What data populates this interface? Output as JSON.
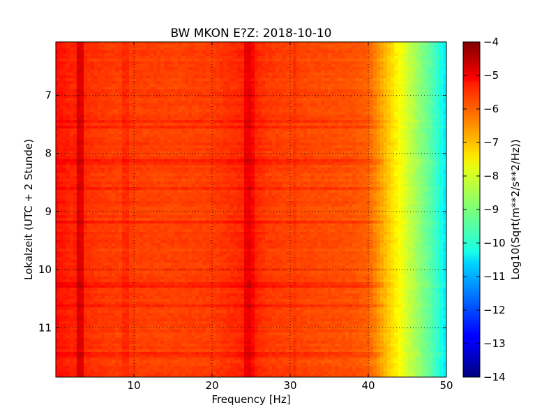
{
  "chart_data": {
    "type": "heatmap",
    "title": "BW MKON E?Z: 2018-10-10",
    "xlabel": "Frequency [Hz]",
    "ylabel": "Lokalzeit (UTC + 2 Stunde)",
    "xlim": [
      0,
      50
    ],
    "ylim": [
      11.85,
      6.08
    ],
    "y_inverted": true,
    "x_ticks": [
      10,
      20,
      30,
      40,
      50
    ],
    "x_tick_labels": [
      "10",
      "20",
      "30",
      "40",
      "50"
    ],
    "y_ticks": [
      7,
      8,
      9,
      10,
      11
    ],
    "y_tick_labels": [
      "7",
      "8",
      "9",
      "10",
      "11"
    ],
    "grid": true,
    "colorbar": {
      "label": "Log10(Sqrt(m**2/s**2/Hz))",
      "range": [
        -14,
        -4
      ],
      "ticks": [
        -4,
        -5,
        -6,
        -7,
        -8,
        -9,
        -10,
        -11,
        -12,
        -13,
        -14
      ],
      "tick_labels": [
        "−4",
        "−5",
        "−6",
        "−7",
        "−8",
        "−9",
        "−10",
        "−11",
        "−12",
        "−13",
        "−14"
      ],
      "colormap": "jet"
    },
    "spectral_profile": {
      "frequency_hz": [
        0,
        1,
        2,
        3,
        4,
        6,
        8,
        10,
        15,
        20,
        24,
        25,
        27,
        30,
        35,
        38,
        40,
        41,
        42,
        43,
        44,
        45,
        46,
        47,
        48,
        49,
        50
      ],
      "log10_amplitude": [
        -5.4,
        -5.5,
        -5.6,
        -5.5,
        -5.7,
        -5.8,
        -5.85,
        -5.85,
        -5.9,
        -5.85,
        -5.6,
        -5.5,
        -5.8,
        -5.9,
        -6.0,
        -6.05,
        -6.2,
        -6.6,
        -7.0,
        -7.4,
        -7.8,
        -8.2,
        -8.6,
        -9.0,
        -9.4,
        -9.8,
        -10.5
      ]
    },
    "time_bands": [
      {
        "time_h": 7.45,
        "offset": 0.25
      },
      {
        "time_h": 7.55,
        "offset": 0.2
      },
      {
        "time_h": 8.15,
        "offset": 0.25
      },
      {
        "time_h": 8.6,
        "offset": 0.2
      },
      {
        "time_h": 9.18,
        "offset": 0.35
      },
      {
        "time_h": 10.28,
        "offset": 0.35
      },
      {
        "time_h": 10.62,
        "offset": 0.2
      },
      {
        "time_h": 11.45,
        "offset": 0.2
      }
    ],
    "freq_bands": [
      {
        "frequency_hz": 3.2,
        "offset": 0.6
      },
      {
        "frequency_hz": 8.8,
        "offset": 0.2
      },
      {
        "frequency_hz": 24.6,
        "offset": 0.45
      },
      {
        "frequency_hz": 25.3,
        "offset": 0.25
      },
      {
        "frequency_hz": 30.5,
        "offset": 0.15
      }
    ]
  }
}
